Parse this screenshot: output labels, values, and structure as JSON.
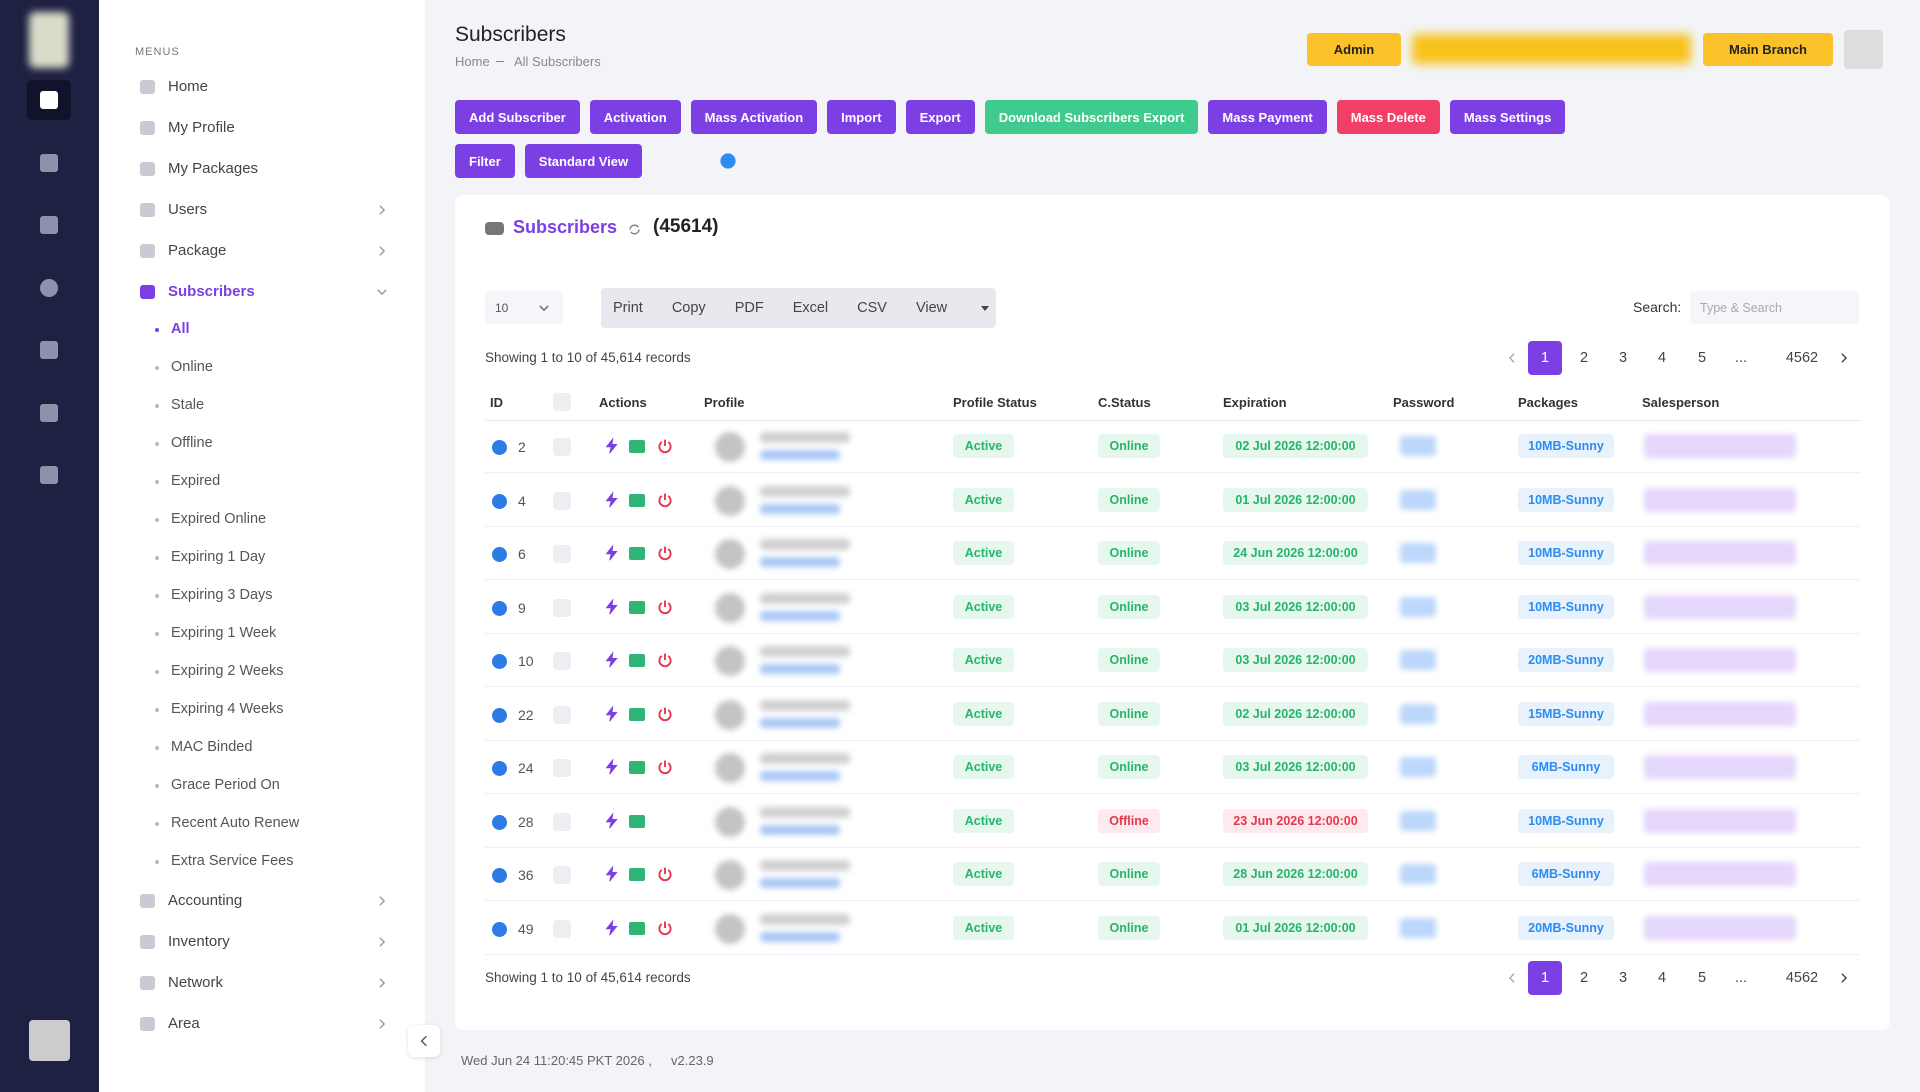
{
  "sidebar": {
    "menus_label": "MENUS",
    "items": [
      "Home",
      "My Profile",
      "My Packages",
      "Users",
      "Package",
      "Subscribers"
    ],
    "submenu": [
      "All",
      "Online",
      "Stale",
      "Offline",
      "Expired",
      "Expired Online",
      "Expiring 1 Day",
      "Expiring 3 Days",
      "Expiring 1 Week",
      "Expiring 2 Weeks",
      "Expiring 4 Weeks",
      "MAC Binded",
      "Grace Period On",
      "Recent Auto Renew",
      "Extra Service Fees"
    ],
    "items_after": [
      "Accounting",
      "Inventory",
      "Network",
      "Area"
    ]
  },
  "header": {
    "title": "Subscribers",
    "breadcrumb": [
      "Home",
      "All Subscribers"
    ],
    "admin_button": "Admin",
    "branch_button": "Main Branch"
  },
  "toolbar": {
    "rows": [
      [
        "Add Subscriber",
        "Activation",
        "Mass Activation",
        "Import",
        "Export",
        "Download Subscribers Export",
        "Mass Payment",
        "Mass Delete",
        "Mass Settings"
      ],
      [
        "Filter",
        "Standard View"
      ]
    ]
  },
  "card": {
    "title": "Subscribers",
    "count": "(45614)",
    "page_length": "10",
    "export_buttons": [
      "Print",
      "Copy",
      "PDF",
      "Excel",
      "CSV",
      "View"
    ],
    "search_label": "Search:",
    "search_placeholder": "Type & Search",
    "info": "Showing 1 to 10 of 45,614 records",
    "pagination": [
      "1",
      "2",
      "3",
      "4",
      "5",
      "...",
      "4562"
    ],
    "columns": [
      "ID",
      "Actions",
      "Profile",
      "Profile Status",
      "C.Status",
      "Expiration",
      "Password",
      "Packages",
      "Salesperson"
    ],
    "rows": [
      {
        "id": 2,
        "status": "Active",
        "c_status": "Online",
        "expiration": "02 Jul 2026 12:00:00",
        "package": "10MB-Sunny"
      },
      {
        "id": 4,
        "status": "Active",
        "c_status": "Online",
        "expiration": "01 Jul 2026 12:00:00",
        "package": "10MB-Sunny"
      },
      {
        "id": 6,
        "status": "Active",
        "c_status": "Online",
        "expiration": "24 Jun 2026 12:00:00",
        "package": "10MB-Sunny"
      },
      {
        "id": 9,
        "status": "Active",
        "c_status": "Online",
        "expiration": "03 Jul 2026 12:00:00",
        "package": "10MB-Sunny"
      },
      {
        "id": 10,
        "status": "Active",
        "c_status": "Online",
        "expiration": "03 Jul 2026 12:00:00",
        "package": "20MB-Sunny"
      },
      {
        "id": 22,
        "status": "Active",
        "c_status": "Online",
        "expiration": "02 Jul 2026 12:00:00",
        "package": "15MB-Sunny"
      },
      {
        "id": 24,
        "status": "Active",
        "c_status": "Online",
        "expiration": "03 Jul 2026 12:00:00",
        "package": "6MB-Sunny"
      },
      {
        "id": 28,
        "status": "Active",
        "c_status": "Offline",
        "expiration": "23 Jun 2026 12:00:00",
        "package": "10MB-Sunny"
      },
      {
        "id": 36,
        "status": "Active",
        "c_status": "Online",
        "expiration": "28 Jun 2026 12:00:00",
        "package": "6MB-Sunny"
      },
      {
        "id": 49,
        "status": "Active",
        "c_status": "Online",
        "expiration": "01 Jul 2026 12:00:00",
        "package": "20MB-Sunny"
      }
    ]
  },
  "footer": {
    "datetime": "Wed Jun 24 11:20:45 PKT 2026 ,",
    "version": "v2.23.9"
  }
}
